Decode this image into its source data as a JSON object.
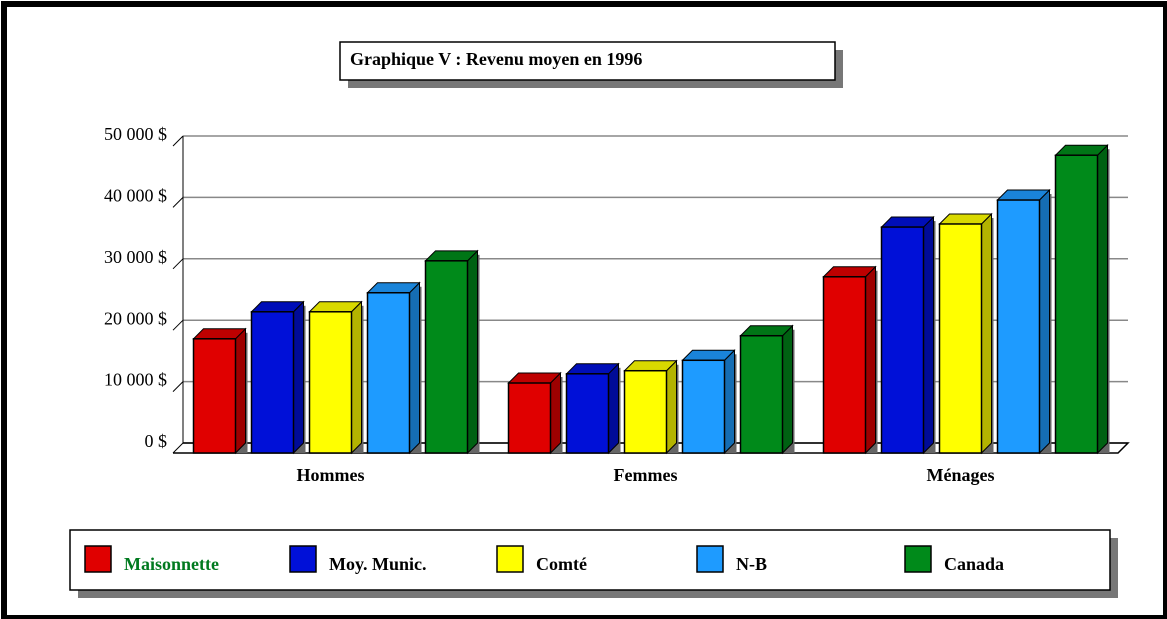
{
  "chart_data": {
    "type": "bar3d",
    "title": "Graphique V : Revenu moyen en 1996",
    "categories": [
      "Hommes",
      "Femmes",
      "Ménages"
    ],
    "series": [
      {
        "name": "Maisonnette",
        "color": "#e00000",
        "values": [
          18600,
          11400,
          28700
        ]
      },
      {
        "name": "Moy. Munic.",
        "color": "#0010d8",
        "values": [
          23000,
          12900,
          36800
        ]
      },
      {
        "name": "Comté",
        "color": "#ffff00",
        "values": [
          23000,
          13400,
          37300
        ]
      },
      {
        "name": "N-B",
        "color": "#1e9bff",
        "values": [
          26100,
          15100,
          41200
        ]
      },
      {
        "name": "Canada",
        "color": "#008a1a",
        "values": [
          31300,
          19100,
          48500
        ]
      }
    ],
    "ylim": [
      0,
      50000
    ],
    "yticks": [
      {
        "value": 0,
        "label": "0 $"
      },
      {
        "value": 10000,
        "label": "10 000 $"
      },
      {
        "value": 20000,
        "label": "20 000 $"
      },
      {
        "value": 30000,
        "label": "30 000 $"
      },
      {
        "value": 40000,
        "label": "40 000 $"
      },
      {
        "value": 50000,
        "label": "50 000 $"
      }
    ],
    "grid": true
  }
}
